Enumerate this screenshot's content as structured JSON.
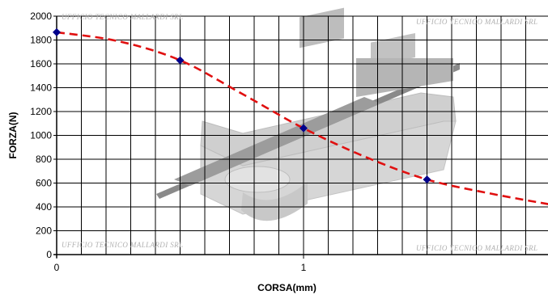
{
  "watermark": {
    "text": "UFFICIO TECNICO MALLARDI SRL"
  },
  "chart_data": {
    "type": "scatter",
    "title": "",
    "xlabel": "CORSA(mm)",
    "ylabel": "FORZA(N)",
    "xlim": [
      0,
      2
    ],
    "ylim": [
      0,
      2000
    ],
    "x_ticks": [
      0,
      1
    ],
    "y_ticks": [
      0,
      200,
      400,
      600,
      800,
      1000,
      1200,
      1400,
      1600,
      1800,
      2000
    ],
    "grid": true,
    "legend": "none",
    "series": [
      {
        "points": [
          {
            "x": 0,
            "y": 1865
          },
          {
            "x": 0.5,
            "y": 1630
          },
          {
            "x": 1,
            "y": 1060
          },
          {
            "x": 1.5,
            "y": 630
          }
        ],
        "marker": "diamond",
        "marker_color": "#00008b"
      }
    ],
    "trendline": {
      "style": "dashed",
      "color": "#e01010",
      "points": [
        {
          "x": 0,
          "y": 1865
        },
        {
          "x": 0.25,
          "y": 1790
        },
        {
          "x": 0.5,
          "y": 1630
        },
        {
          "x": 0.75,
          "y": 1350
        },
        {
          "x": 1,
          "y": 1060
        },
        {
          "x": 1.25,
          "y": 820
        },
        {
          "x": 1.5,
          "y": 630
        },
        {
          "x": 1.75,
          "y": 515
        },
        {
          "x": 2,
          "y": 420
        }
      ]
    },
    "background_illustration": "cutaway electromagnet / solenoid body"
  }
}
